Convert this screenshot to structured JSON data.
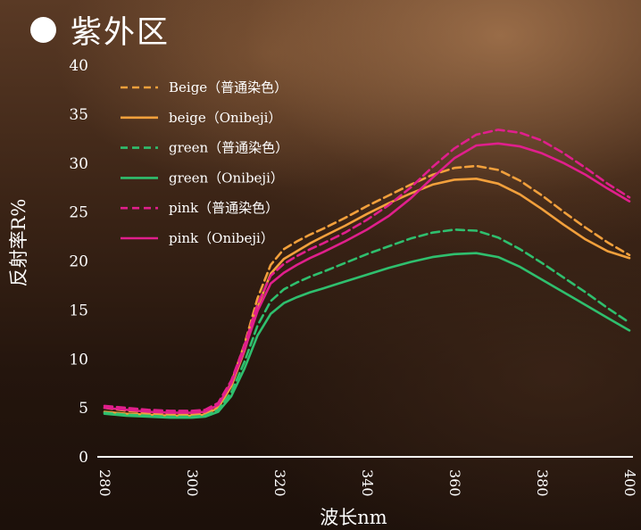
{
  "title": "紫外区",
  "chart_data": {
    "type": "line",
    "xlabel": "波长nm",
    "ylabel": "反射率R%",
    "xlim": [
      280,
      400
    ],
    "ylim": [
      0,
      40
    ],
    "xticks": [
      280,
      300,
      320,
      340,
      360,
      380,
      400
    ],
    "yticks": [
      0,
      5,
      10,
      15,
      20,
      25,
      30,
      35,
      40
    ],
    "legend_position": "top-left",
    "grid": false,
    "x": [
      280,
      285,
      290,
      295,
      300,
      303,
      306,
      309,
      312,
      315,
      318,
      321,
      324,
      327,
      330,
      335,
      340,
      345,
      350,
      355,
      360,
      365,
      370,
      375,
      380,
      385,
      390,
      395,
      400
    ],
    "series": [
      {
        "name": "Beige（普通染色）",
        "color": "#f2a03c",
        "dash": true,
        "values": [
          5.0,
          4.7,
          4.5,
          4.4,
          4.4,
          4.5,
          5.2,
          7.6,
          11.5,
          16.2,
          19.6,
          21.2,
          22.0,
          22.7,
          23.3,
          24.4,
          25.6,
          26.7,
          27.8,
          28.8,
          29.5,
          29.7,
          29.3,
          28.2,
          26.7,
          25.0,
          23.4,
          21.9,
          20.6
        ]
      },
      {
        "name": "beige（Onibeji）",
        "color": "#f2a03c",
        "dash": false,
        "values": [
          4.6,
          4.4,
          4.3,
          4.2,
          4.2,
          4.3,
          5.0,
          7.2,
          10.8,
          15.3,
          18.7,
          20.2,
          21.0,
          21.8,
          22.5,
          23.6,
          24.8,
          25.9,
          26.9,
          27.8,
          28.3,
          28.4,
          27.9,
          26.8,
          25.3,
          23.7,
          22.2,
          21.0,
          20.3
        ]
      },
      {
        "name": "green（普通染色）",
        "color": "#2fbf6e",
        "dash": true,
        "values": [
          4.5,
          4.3,
          4.2,
          4.1,
          4.1,
          4.2,
          4.8,
          6.6,
          9.7,
          13.4,
          15.9,
          17.1,
          17.8,
          18.4,
          18.9,
          19.8,
          20.7,
          21.5,
          22.3,
          22.9,
          23.2,
          23.1,
          22.4,
          21.2,
          19.8,
          18.3,
          16.8,
          15.2,
          13.7
        ]
      },
      {
        "name": "green（Onibeji）",
        "color": "#2fbf6e",
        "dash": false,
        "values": [
          4.4,
          4.2,
          4.1,
          4.0,
          4.0,
          4.1,
          4.6,
          6.2,
          9.0,
          12.4,
          14.6,
          15.7,
          16.3,
          16.8,
          17.2,
          17.9,
          18.6,
          19.3,
          19.9,
          20.4,
          20.7,
          20.8,
          20.4,
          19.4,
          18.1,
          16.8,
          15.5,
          14.2,
          12.9
        ]
      },
      {
        "name": "pink（普通染色）",
        "color": "#e01f8c",
        "dash": true,
        "values": [
          5.2,
          5.0,
          4.8,
          4.7,
          4.7,
          4.8,
          5.5,
          7.8,
          11.4,
          15.6,
          18.5,
          19.7,
          20.5,
          21.2,
          21.8,
          22.9,
          24.2,
          25.7,
          27.5,
          29.6,
          31.5,
          32.9,
          33.4,
          33.1,
          32.3,
          31.0,
          29.5,
          27.9,
          26.5
        ]
      },
      {
        "name": "pink（Onibeji）",
        "color": "#e01f8c",
        "dash": false,
        "values": [
          5.0,
          4.8,
          4.6,
          4.5,
          4.5,
          4.6,
          5.3,
          7.5,
          10.9,
          14.9,
          17.7,
          18.8,
          19.6,
          20.3,
          20.9,
          22.0,
          23.2,
          24.6,
          26.4,
          28.5,
          30.5,
          31.8,
          32.0,
          31.7,
          31.0,
          30.0,
          28.8,
          27.4,
          26.1
        ]
      }
    ]
  }
}
